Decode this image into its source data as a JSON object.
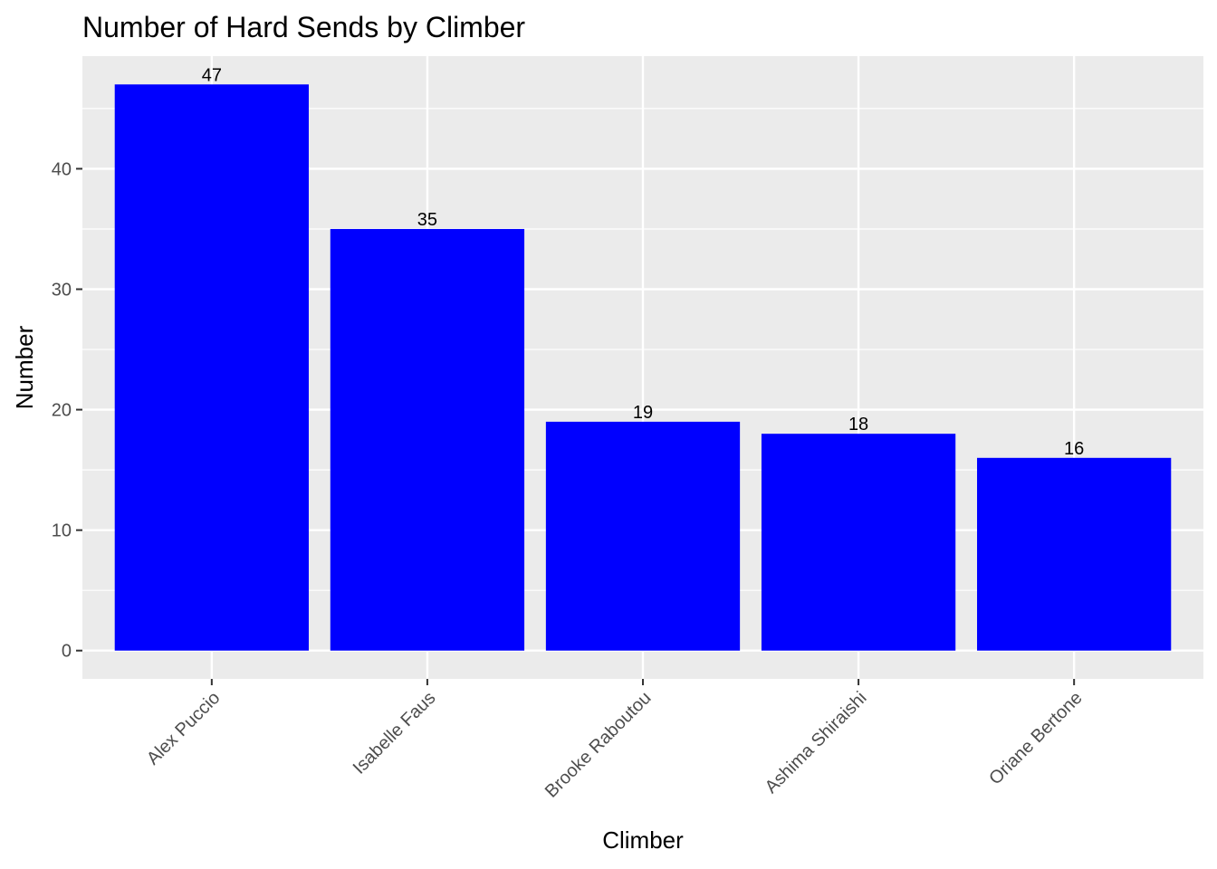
{
  "chart_data": {
    "type": "bar",
    "title": "Number of Hard Sends by Climber",
    "xlabel": "Climber",
    "ylabel": "Number",
    "categories": [
      "Alex Puccio",
      "Isabelle Faus",
      "Brooke Raboutou",
      "Ashima Shiraishi",
      "Oriane Bertone"
    ],
    "values": [
      47,
      35,
      19,
      18,
      16
    ],
    "y_ticks": [
      0,
      10,
      20,
      30,
      40
    ],
    "ylim": [
      -2.35,
      49.35
    ],
    "grid": true,
    "legend": "none",
    "colors": {
      "bar": "#0000ff",
      "panel": "#ebebeb",
      "gridline": "#ffffff"
    }
  }
}
